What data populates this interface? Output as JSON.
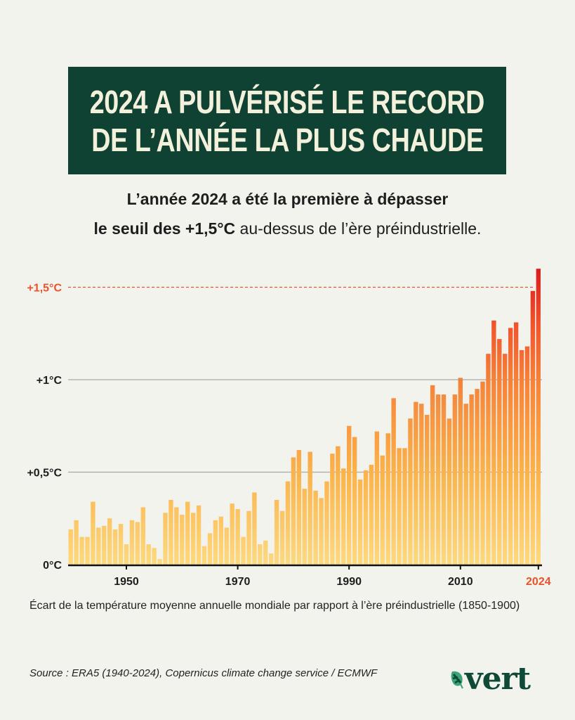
{
  "title": {
    "line1": "2024 A PULVÉRISÉ LE RECORD",
    "line2": "DE L’ANNÉE LA PLUS CHAUDE"
  },
  "subtitle": {
    "line1": "L’année 2024 a été la première à dépasser",
    "line2_bold": "le seuil des +1,5°C",
    "line2_rest": " au-dessus de l’ère préindustrielle."
  },
  "caption": "Écart de la température moyenne annuelle mondiale par rapport à l’ère préindustrielle (1850-1900)",
  "source": "Source : ERA5 (1940-2024), Copernicus climate change service / ECMWF",
  "logo": {
    "text": "vert",
    "icon": "leaf-icon",
    "color": "#0f4a38"
  },
  "colors": {
    "title_bg": "#0f4232",
    "threshold": "#e8532a",
    "bar_low": "#fdd97f",
    "bar_high": "#d81c1c"
  },
  "chart_data": {
    "type": "bar",
    "xlabel": "",
    "ylabel": "",
    "ylim": [
      0,
      1.6
    ],
    "grid": true,
    "y_ticks": [
      {
        "value": 0,
        "label": "0°C"
      },
      {
        "value": 0.5,
        "label": "+0,5°C"
      },
      {
        "value": 1,
        "label": "+1°C"
      }
    ],
    "threshold": {
      "value": 1.5,
      "label": "+1,5°C"
    },
    "x_ticks": [
      {
        "year": 1950,
        "label": "1950"
      },
      {
        "year": 1970,
        "label": "1970"
      },
      {
        "year": 1990,
        "label": "1990"
      },
      {
        "year": 2010,
        "label": "2010"
      },
      {
        "year": 2024,
        "label": "2024",
        "highlight": true
      }
    ],
    "x_start": 1940,
    "values": [
      0.19,
      0.24,
      0.15,
      0.15,
      0.34,
      0.2,
      0.21,
      0.25,
      0.19,
      0.22,
      0.11,
      0.24,
      0.23,
      0.31,
      0.11,
      0.09,
      0.03,
      0.28,
      0.35,
      0.31,
      0.27,
      0.34,
      0.28,
      0.32,
      0.1,
      0.17,
      0.24,
      0.26,
      0.2,
      0.33,
      0.3,
      0.15,
      0.29,
      0.39,
      0.11,
      0.13,
      0.06,
      0.35,
      0.29,
      0.45,
      0.58,
      0.62,
      0.41,
      0.61,
      0.4,
      0.36,
      0.45,
      0.6,
      0.64,
      0.52,
      0.75,
      0.69,
      0.46,
      0.51,
      0.54,
      0.72,
      0.59,
      0.71,
      0.9,
      0.63,
      0.63,
      0.79,
      0.88,
      0.87,
      0.81,
      0.97,
      0.92,
      0.92,
      0.79,
      0.92,
      1.01,
      0.87,
      0.92,
      0.95,
      0.99,
      1.14,
      1.32,
      1.22,
      1.14,
      1.28,
      1.31,
      1.16,
      1.18,
      1.48,
      1.6
    ]
  }
}
